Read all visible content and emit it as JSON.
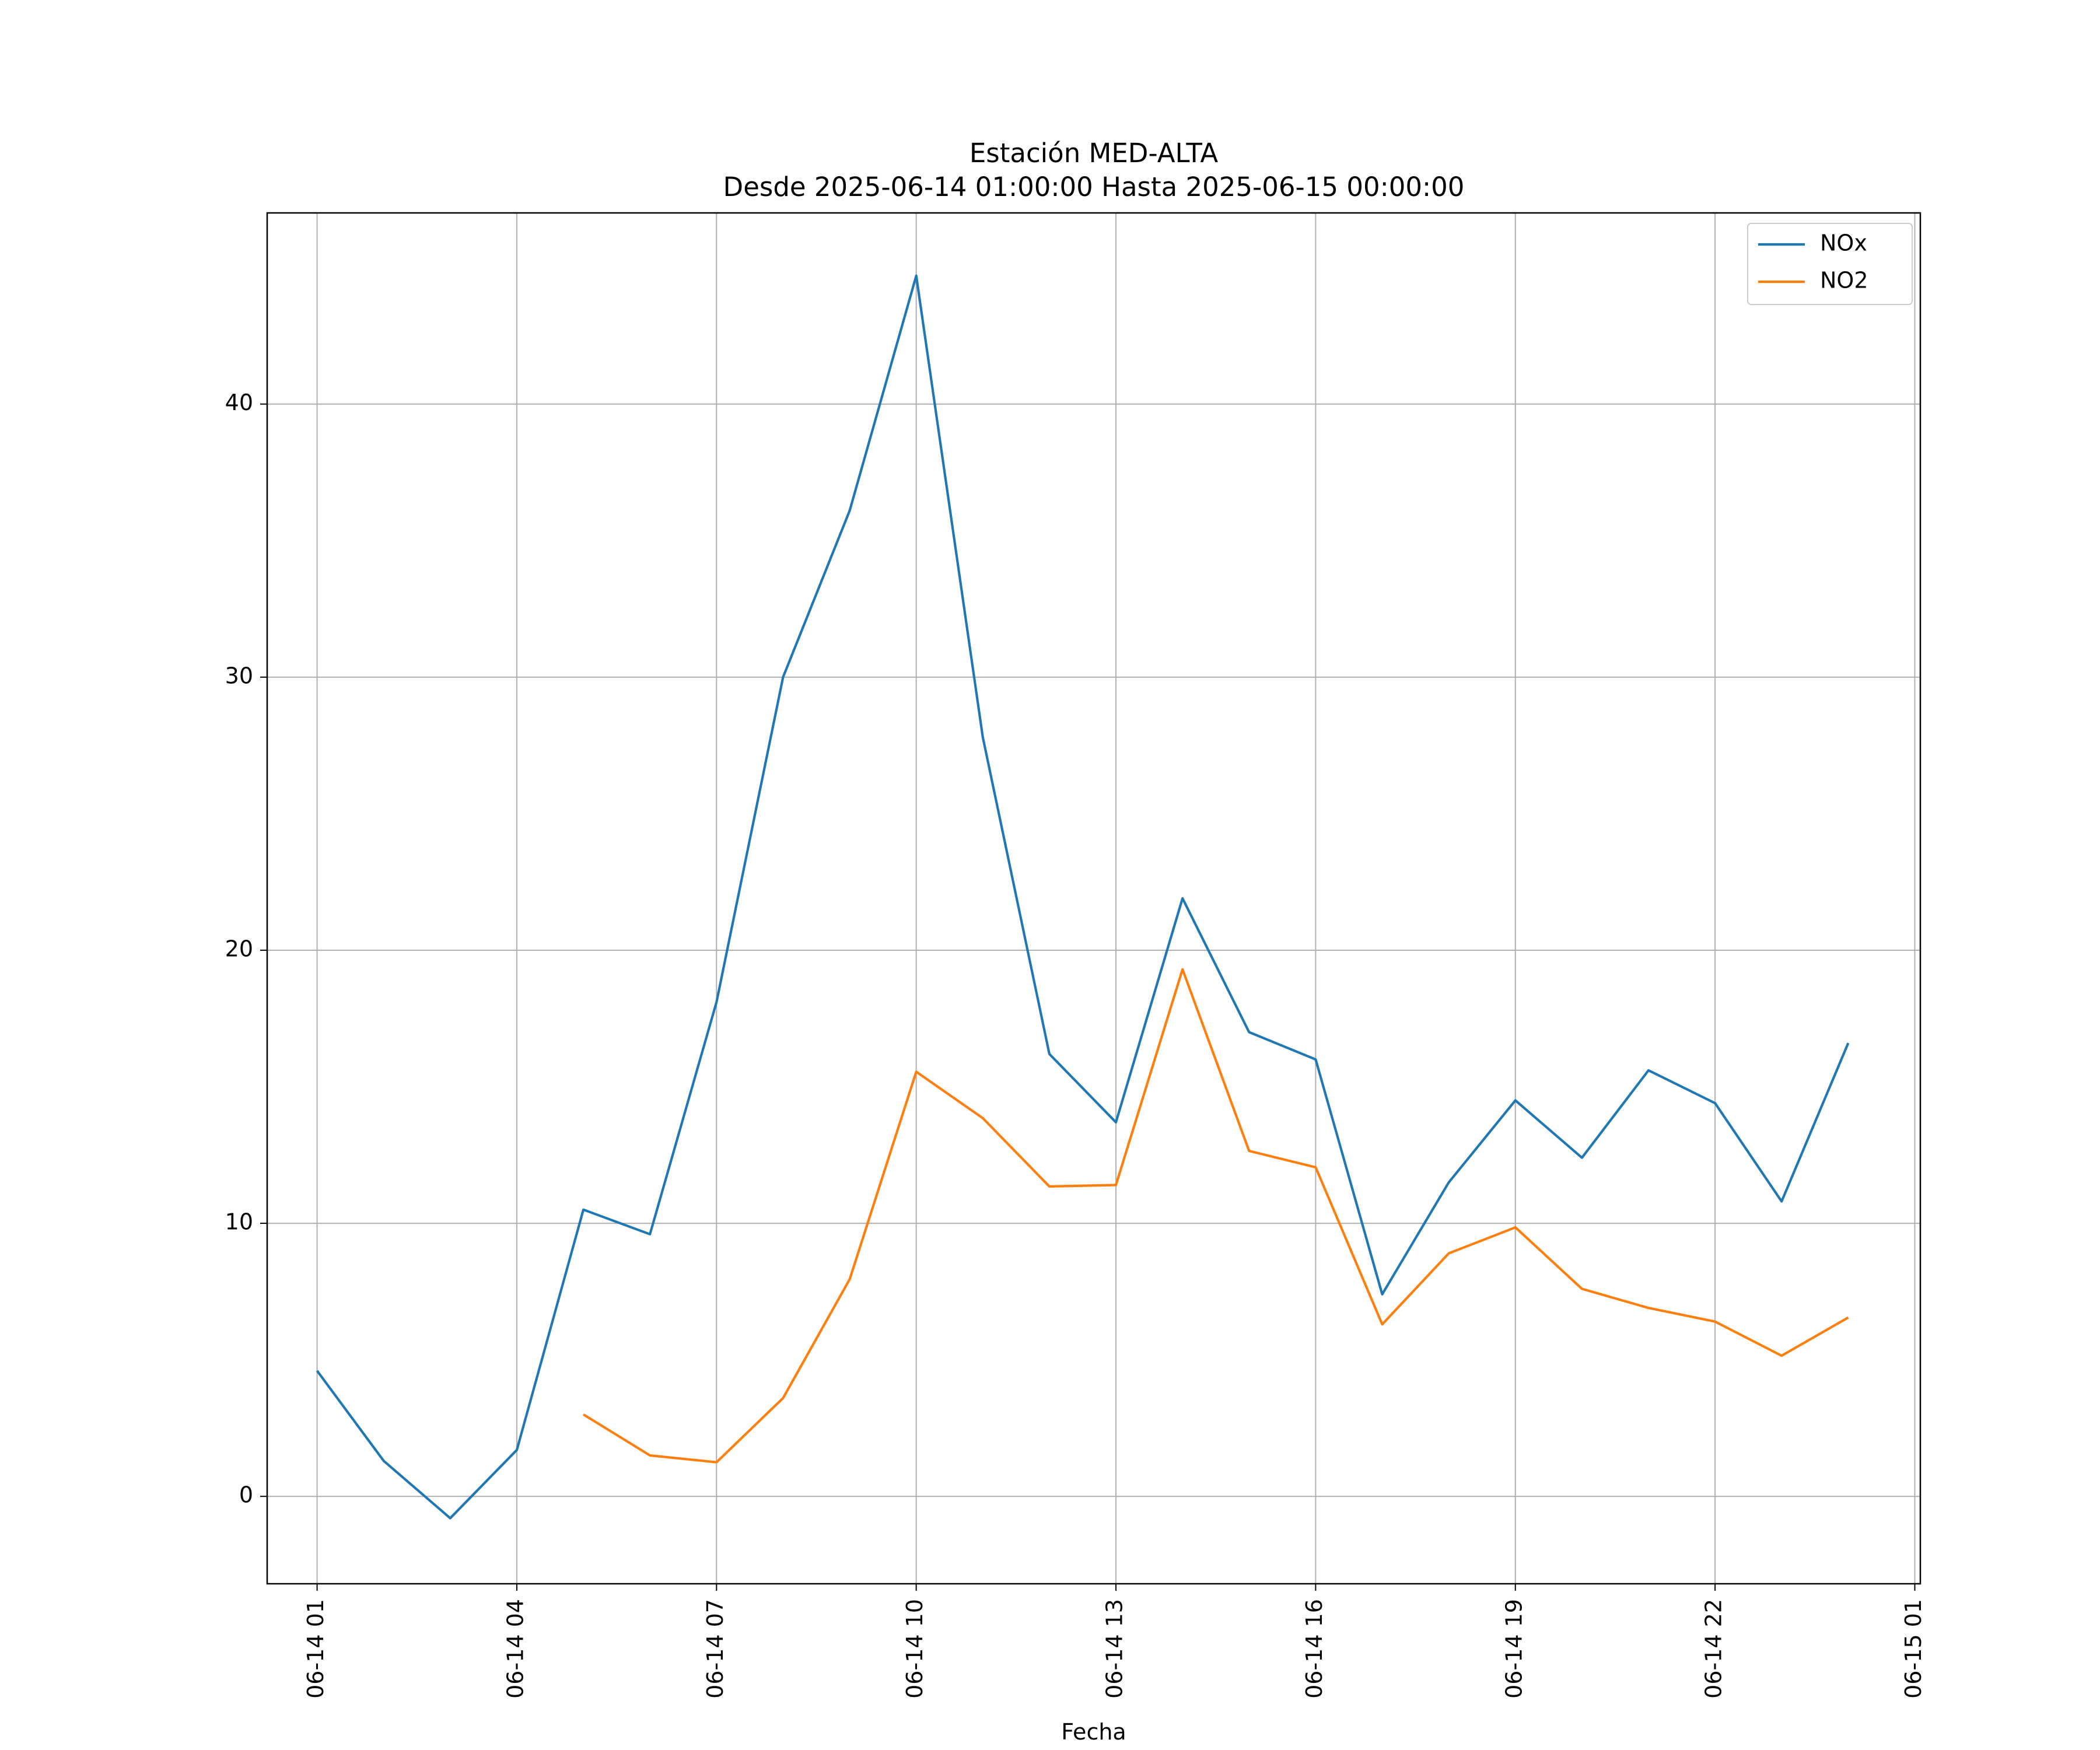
{
  "chart_data": {
    "type": "line",
    "title": "Estación MED-ALTA",
    "subtitle": "Desde 2025-06-14 01:00:00 Hasta 2025-06-15 00:00:00",
    "xlabel": "Fecha",
    "ylabel": "",
    "x": [
      "06-14 01",
      "06-14 02",
      "06-14 03",
      "06-14 04",
      "06-14 05",
      "06-14 06",
      "06-14 07",
      "06-14 08",
      "06-14 09",
      "06-14 10",
      "06-14 11",
      "06-14 12",
      "06-14 13",
      "06-14 14",
      "06-14 15",
      "06-14 16",
      "06-14 17",
      "06-14 18",
      "06-14 19",
      "06-14 20",
      "06-14 21",
      "06-14 22",
      "06-14 23",
      "06-15 00"
    ],
    "x_ticks": [
      "06-14 01",
      "06-14 04",
      "06-14 07",
      "06-14 10",
      "06-14 13",
      "06-14 16",
      "06-14 19",
      "06-14 22",
      "06-15 01"
    ],
    "xlim": [
      "06-14 00:15",
      "06-15 01:05"
    ],
    "y_ticks": [
      0,
      10,
      20,
      30,
      40
    ],
    "ylim": [
      -3.2,
      47
    ],
    "grid": true,
    "legend_position": "top-right",
    "series": [
      {
        "name": "NOx",
        "color": "#1f77b4",
        "values": [
          4.6,
          1.3,
          -0.8,
          1.7,
          10.5,
          9.6,
          18.1,
          30.0,
          36.1,
          44.7,
          27.8,
          16.2,
          13.7,
          21.9,
          17.0,
          16.0,
          7.4,
          11.5,
          14.5,
          12.4,
          15.6,
          14.4,
          10.8,
          16.6
        ]
      },
      {
        "name": "NO2",
        "color": "#ff7f0e",
        "values": [
          null,
          null,
          null,
          null,
          3.0,
          1.5,
          1.25,
          3.6,
          7.95,
          15.55,
          13.85,
          11.35,
          11.4,
          19.3,
          12.65,
          12.05,
          6.3,
          8.9,
          9.85,
          7.6,
          6.9,
          6.4,
          5.15,
          6.55
        ]
      }
    ]
  }
}
